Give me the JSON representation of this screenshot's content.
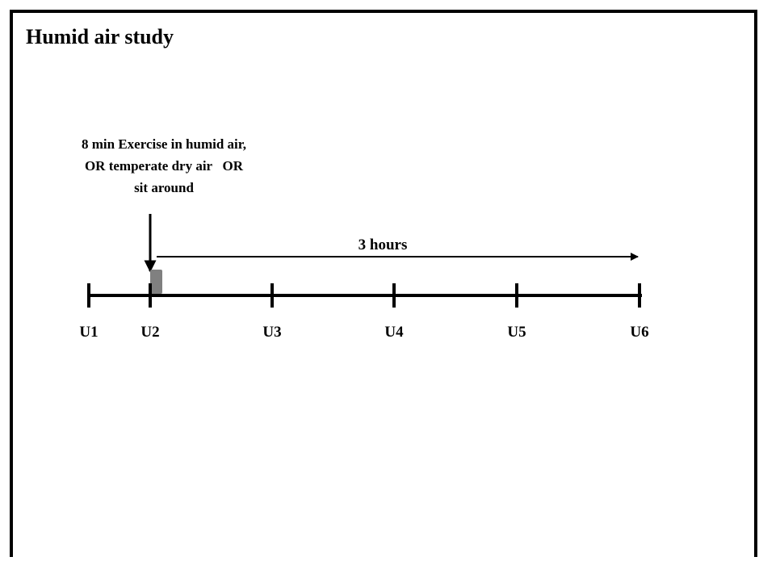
{
  "header": {
    "title": "Humid air study"
  },
  "intervention": {
    "lines": [
      "8 min Exercise in humid air,",
      "OR temperate dry air   OR",
      "sit around"
    ]
  },
  "duration": {
    "label": "3 hours"
  },
  "timeline": {
    "timepoints": [
      "U1",
      "U2",
      "U3",
      "U4",
      "U5",
      "U6"
    ]
  }
}
